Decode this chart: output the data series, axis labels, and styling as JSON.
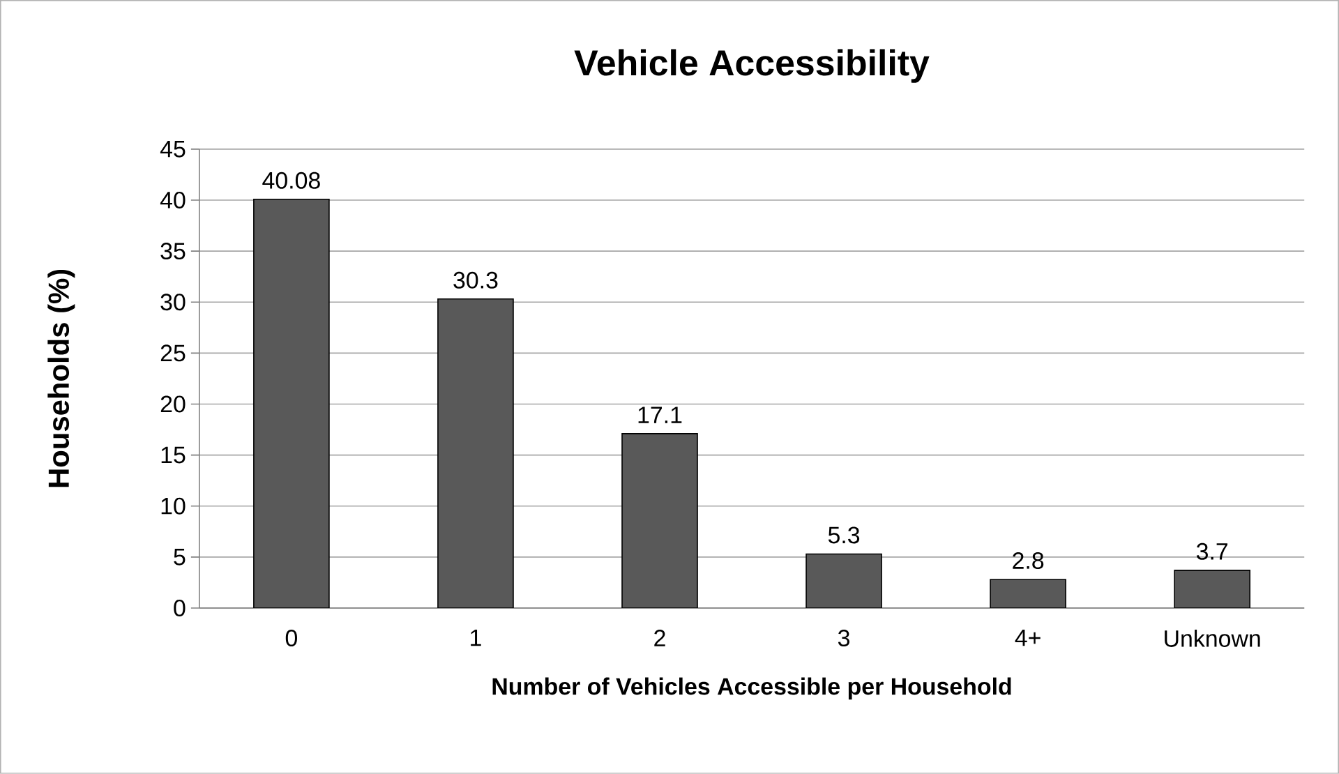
{
  "chart_data": {
    "type": "bar",
    "title": "Vehicle Accessibility",
    "xlabel": "Number of Vehicles Accessible per Household",
    "ylabel": "Households (%)",
    "categories": [
      "0",
      "1",
      "2",
      "3",
      "4+",
      "Unknown"
    ],
    "values": [
      40.08,
      30.3,
      17.1,
      5.3,
      2.8,
      3.7
    ],
    "color": "#595959",
    "ylim": [
      0,
      45
    ],
    "yticks": [
      0,
      5,
      10,
      15,
      20,
      25,
      30,
      35,
      40,
      45
    ],
    "grid": "y",
    "data_labels": true
  }
}
